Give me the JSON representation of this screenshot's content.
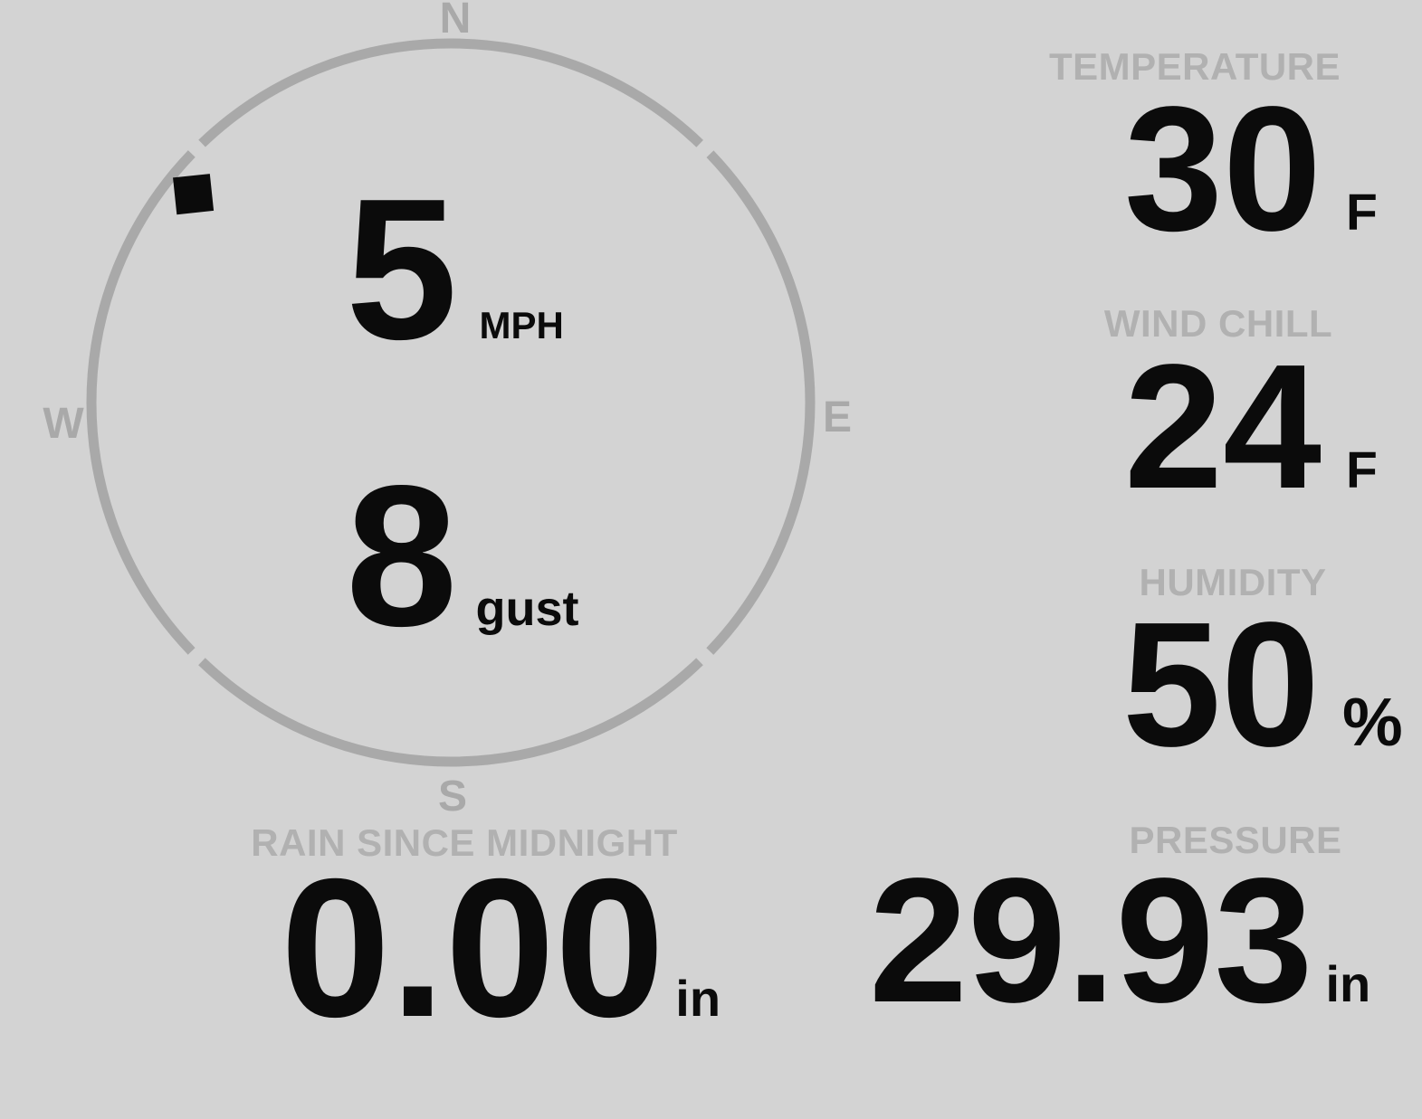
{
  "station": {
    "wind": {
      "speed": "5",
      "speed_unit": "MPH",
      "gust": "8",
      "gust_unit": "gust",
      "direction": "NW",
      "direction_degrees": 309,
      "compass_labels": {
        "north": "N",
        "east": "E",
        "south": "S",
        "west": "W"
      }
    },
    "temperature": {
      "label": "TEMPERATURE",
      "value": "30",
      "unit": "F"
    },
    "wind_chill": {
      "label": "WIND CHILL",
      "value": "24",
      "unit": "F"
    },
    "humidity": {
      "label": "HUMIDITY",
      "value": "50",
      "unit": "%"
    },
    "rain": {
      "label": "RAIN SINCE MIDNIGHT",
      "value": "0.00",
      "unit": "in"
    },
    "pressure": {
      "label": "PRESSURE",
      "value": "29.93",
      "unit": "in"
    }
  },
  "colors": {
    "background": "#d3d3d3",
    "label": "#b1b1b1",
    "compass": "#a9a9a9",
    "value": "#0b0b0b"
  }
}
